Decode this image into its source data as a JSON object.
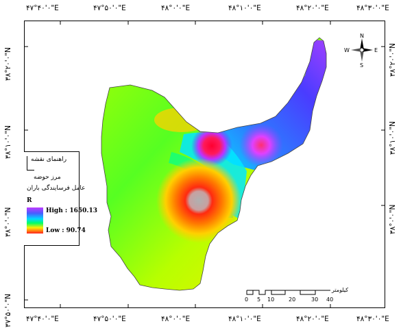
{
  "coordinates": {
    "top": [
      "۴۷°۴۰'۰\"E",
      "۴۷°۵۰'۰\"E",
      "۴۸°۰'۰\"E",
      "۴۸°۱۰'۰\"E",
      "۴۸°۲۰'۰\"E",
      "۴۸°۳۰'۰\"E"
    ],
    "bottom": [
      "۴۷°۴۰'۰\"E",
      "۴۷°۵۰'۰\"E",
      "۴۸°۰'۰\"E",
      "۴۸°۱۰'۰\"E",
      "۴۸°۲۰'۰\"E",
      "۴۸°۳۰'۰\"E"
    ],
    "left": [
      "۳۸°۲۰'۰\"N",
      "۳۸°۱۰'۰\"N",
      "۳۸°۰'۰\"N",
      "۳۷°۵۰'۰\"N"
    ],
    "right": [
      "۳۸°۲۰'۰\"N",
      "۳۸°۱۰'۰\"N",
      "۳۸°۰'۰\"N"
    ]
  },
  "legend": {
    "title": "راهنمای نقشه",
    "boundary_label": "مرز حوضه",
    "factor_label": "عامل فرسایندگی باران",
    "variable": "R",
    "high_label": "High : 1650.13",
    "low_label": "Low : 90.74",
    "high_value": 1650.13,
    "low_value": 90.74
  },
  "north_arrow": {
    "n": "N",
    "s": "S",
    "e": "E",
    "w": "W"
  },
  "scale_bar": {
    "unit": "کیلومتر",
    "ticks": [
      "0",
      "5",
      "10",
      "20",
      "30",
      "40"
    ]
  },
  "colors": {
    "high": "#c03cff",
    "mid_high": "#4a5bff",
    "mid": "#00d9ff",
    "mid_low": "#00ff66",
    "low_mid": "#ffee00",
    "low": "#ff2020"
  }
}
